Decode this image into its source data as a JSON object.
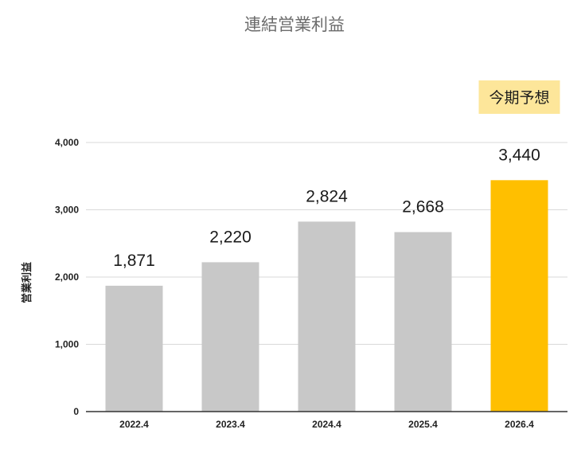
{
  "chart_data": {
    "type": "bar",
    "title": "連結営業利益",
    "ylabel": "営業利益",
    "xlabel": "",
    "categories": [
      "2022.4",
      "2023.4",
      "2024.4",
      "2025.4",
      "2026.4"
    ],
    "values": [
      1871,
      2220,
      2824,
      2668,
      3440
    ],
    "data_labels": [
      "1,871",
      "2,220",
      "2,824",
      "2,668",
      "3,440"
    ],
    "ylim": [
      0,
      4000
    ],
    "yticks": [
      0,
      1000,
      2000,
      3000,
      4000
    ],
    "ytick_labels": [
      "0",
      "1,000",
      "2,000",
      "3,000",
      "4,000"
    ],
    "grid": true,
    "highlight_index": 4,
    "annotation": "今期予想",
    "colors": {
      "bar": "#c8c8c8",
      "highlight": "#ffbf00",
      "annotation_bg": "#fde69a",
      "grid": "#d9d9d9",
      "axis": "#333333"
    }
  }
}
